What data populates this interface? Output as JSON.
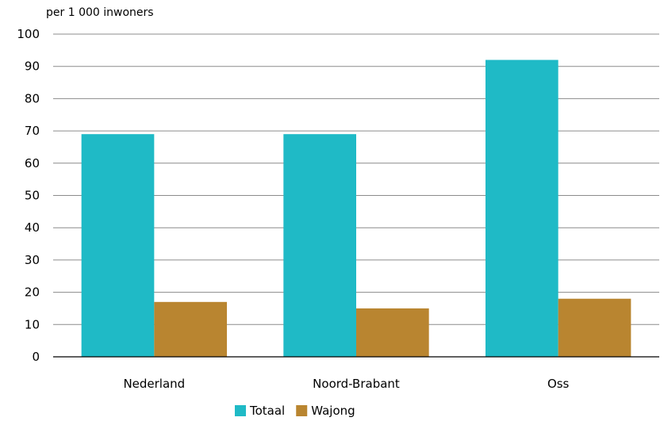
{
  "chart_data": {
    "type": "bar",
    "title": "",
    "xlabel": "",
    "ylabel": "per 1 000 inwoners",
    "categories": [
      "Nederland",
      "Noord-Brabant",
      "Oss"
    ],
    "series": [
      {
        "name": "Totaal",
        "values": [
          69,
          69,
          92
        ],
        "color": "#1FBAC6"
      },
      {
        "name": "Wajong",
        "values": [
          17,
          15,
          18
        ],
        "color": "#B98530"
      }
    ],
    "ylim": [
      0,
      100
    ],
    "yticks": [
      0,
      10,
      20,
      30,
      40,
      50,
      60,
      70,
      80,
      90,
      100
    ],
    "grid": true,
    "legend_position": "bottom-center"
  }
}
